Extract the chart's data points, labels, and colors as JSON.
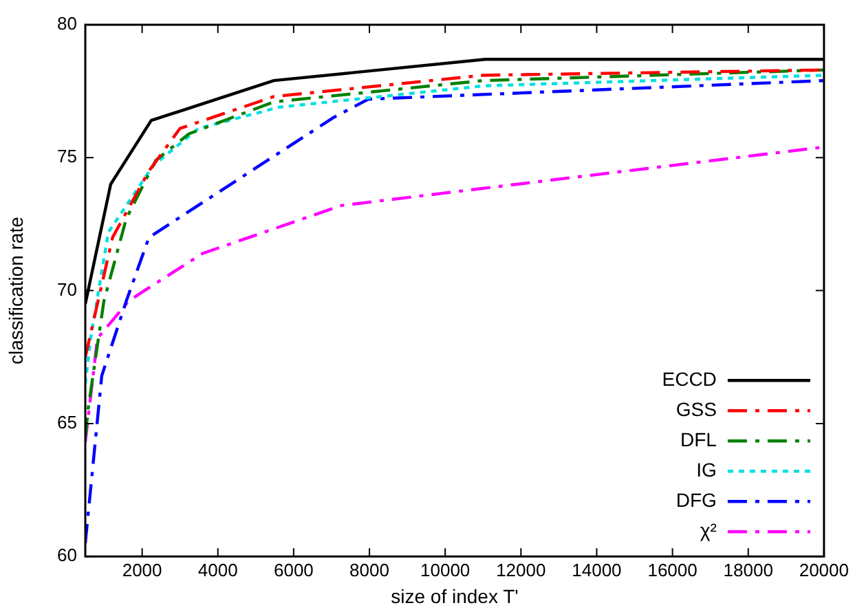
{
  "chart_data": {
    "type": "line",
    "xlabel": "size of index T'",
    "ylabel": "classification rate",
    "xlim": [
      500,
      20000
    ],
    "xticks": [
      2000,
      4000,
      6000,
      8000,
      10000,
      12000,
      14000,
      16000,
      18000,
      20000
    ],
    "ylim": [
      60,
      80
    ],
    "yticks": [
      60,
      65,
      70,
      75,
      80
    ],
    "grid": false,
    "legend": "bottom right",
    "marker": "none",
    "series": [
      {
        "name": "ECCD",
        "color": "#000000",
        "line_style": "solid",
        "x": [
          500,
          1170,
          2240,
          5480,
          11060,
          20000
        ],
        "values": [
          69.5,
          74.0,
          76.4,
          77.9,
          78.7,
          78.7
        ]
      },
      {
        "name": "GSS",
        "color": "#ff0000",
        "line_style": "dashed",
        "x": [
          500,
          1220,
          2180,
          3000,
          5480,
          11000,
          20000
        ],
        "values": [
          67.5,
          72.0,
          74.5,
          76.1,
          77.3,
          78.1,
          78.3
        ]
      },
      {
        "name": "DFL",
        "color": "#008000",
        "line_style": "dashed",
        "x": [
          500,
          580,
          990,
          1580,
          2360,
          3240,
          5480,
          11000,
          20000
        ],
        "values": [
          64.5,
          65.6,
          69.6,
          72.7,
          74.9,
          75.9,
          77.1,
          77.9,
          78.3
        ]
      },
      {
        "name": "IG",
        "color": "#00e0e0",
        "line_style": "dotted",
        "x": [
          500,
          640,
          1110,
          2290,
          3490,
          5620,
          11000,
          20000
        ],
        "values": [
          66.5,
          68.2,
          72.2,
          74.7,
          76.1,
          76.9,
          77.7,
          78.1
        ]
      },
      {
        "name": "DFG",
        "color": "#0000ff",
        "line_style": "dashed",
        "x": [
          500,
          935,
          1580,
          2180,
          7040,
          7970,
          20000
        ],
        "values": [
          60.5,
          66.8,
          69.6,
          72.0,
          76.5,
          77.2,
          77.9
        ]
      },
      {
        "name": "χ²",
        "color": "#ff00ff",
        "line_style": "dashed",
        "x": [
          500,
          820,
          1640,
          2060,
          3600,
          7260,
          20000
        ],
        "values": [
          64.3,
          68.2,
          69.6,
          70.0,
          71.4,
          73.2,
          75.4
        ]
      }
    ]
  }
}
